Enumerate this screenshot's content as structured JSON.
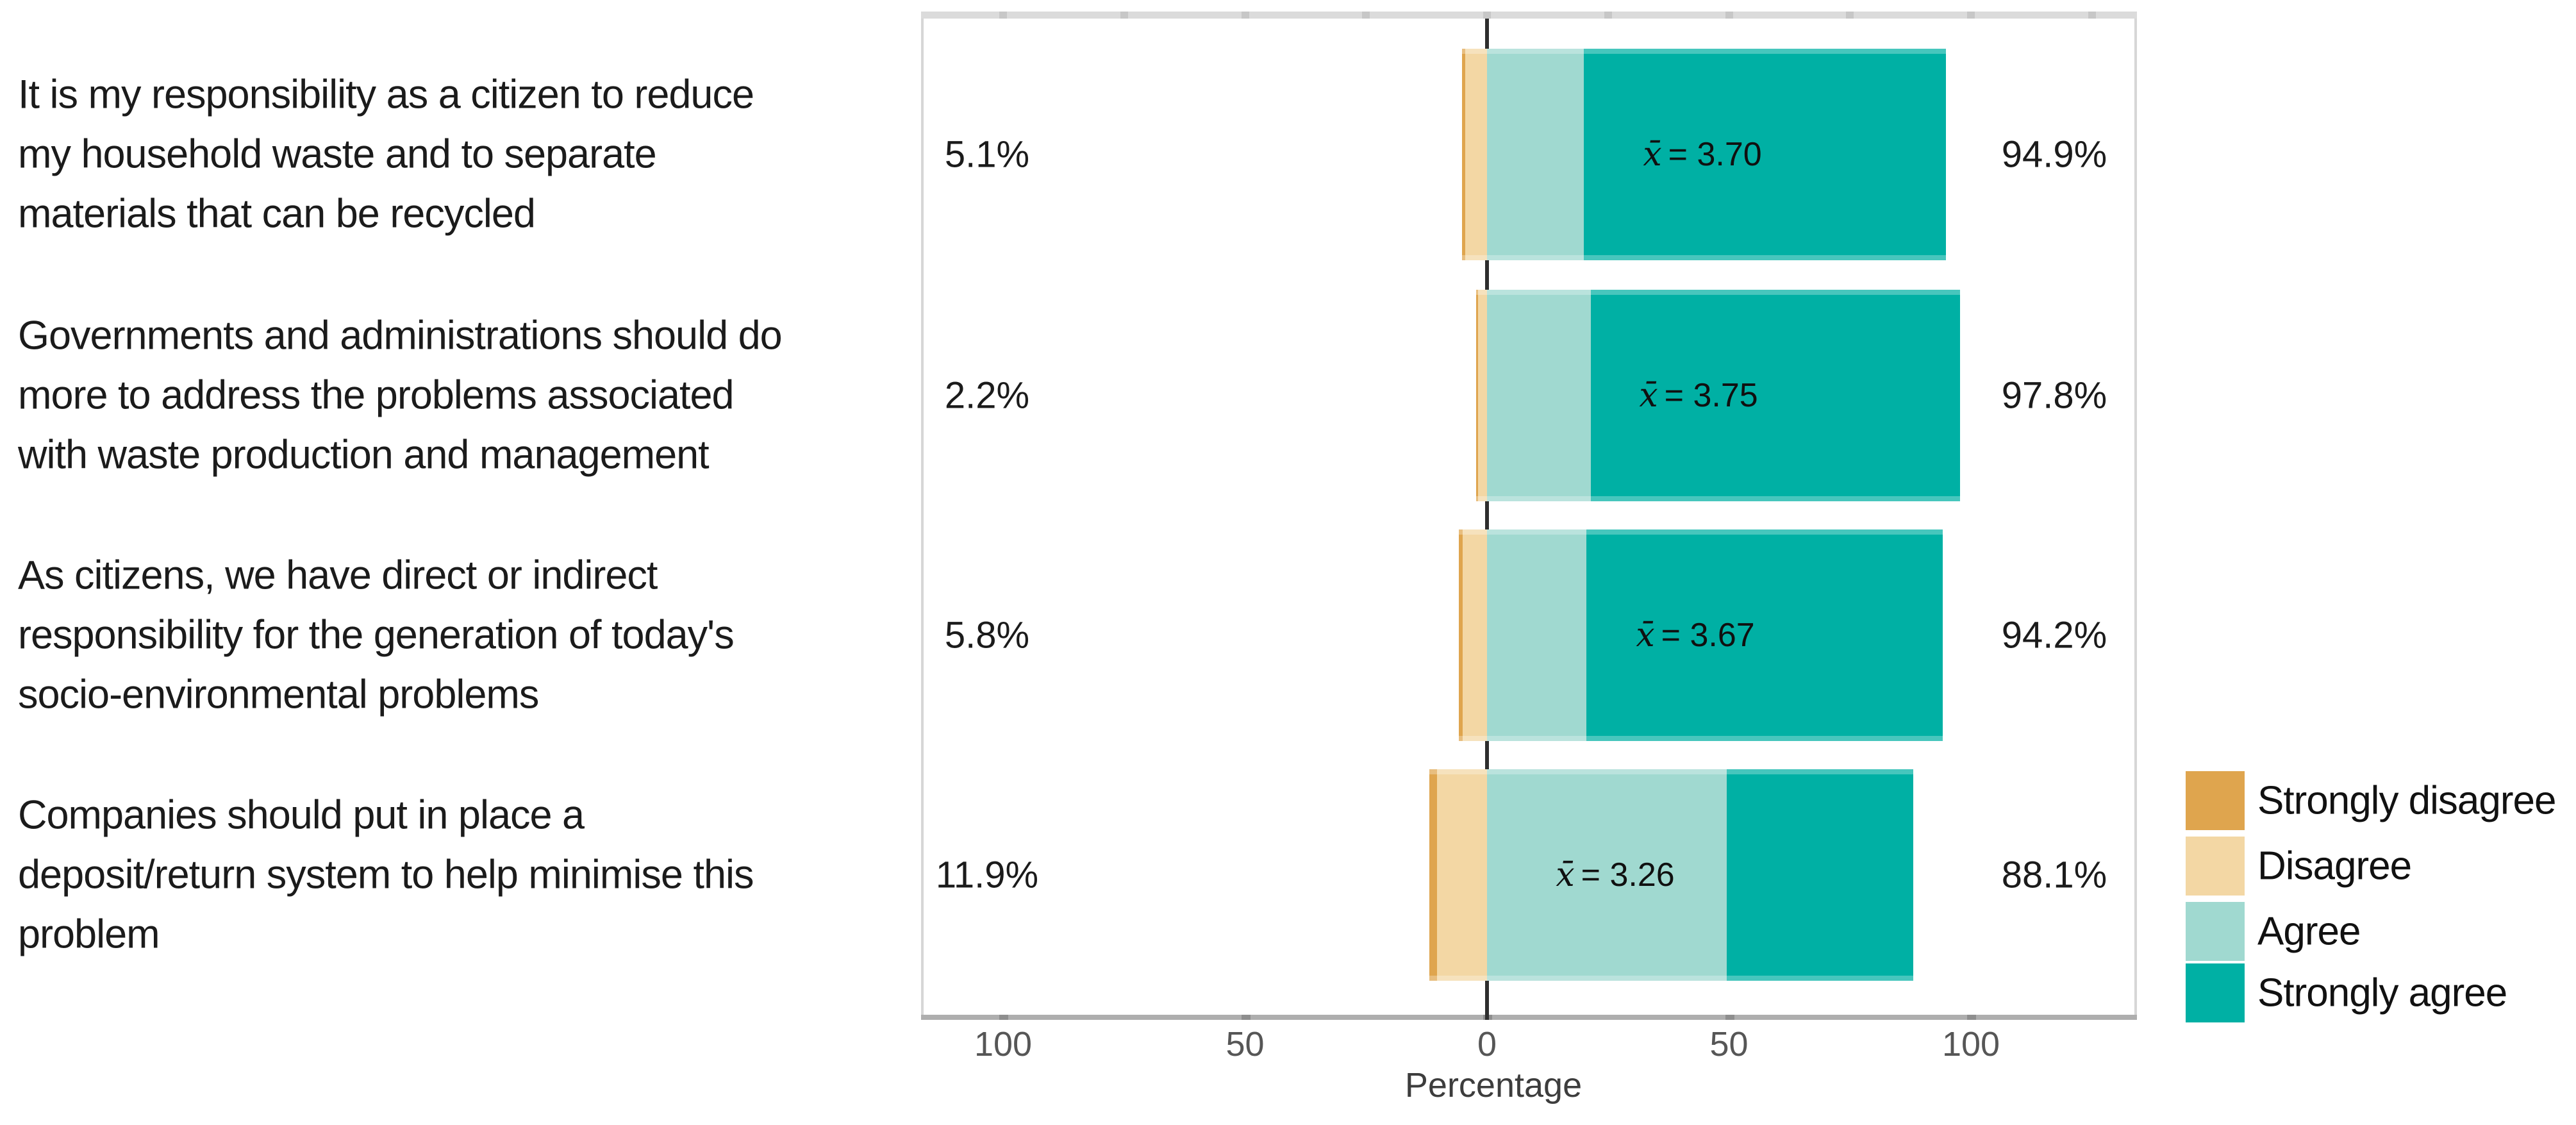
{
  "chart_data": {
    "type": "bar",
    "subtype": "diverging_stacked_likert",
    "x_axis": {
      "title": "Percentage",
      "tick_labels": [
        "100",
        "50",
        "0",
        "50",
        "100"
      ],
      "tick_values": [
        -100,
        -50,
        0,
        50,
        100
      ],
      "range": [
        -117,
        134
      ],
      "grid": "off"
    },
    "mean_symbol": "x̄",
    "legend": [
      {
        "key": "strongly_disagree",
        "label": "Strongly disagree",
        "color": "#DFA54E"
      },
      {
        "key": "disagree",
        "label": "Disagree",
        "color": "#F3D7A4"
      },
      {
        "key": "agree",
        "label": "Agree",
        "color": "#A0D9D0"
      },
      {
        "key": "strongly_agree",
        "label": "Strongly agree",
        "color": "#00B0A4"
      }
    ],
    "legend_position": "bottom-right",
    "rows": [
      {
        "statement_lines": [
          "It is my responsibility as a citizen to reduce",
          "my household waste and to separate",
          "materials that can be recycled"
        ],
        "left_label": "5.1%",
        "right_label": "94.9%",
        "mean_text": "= 3.70",
        "mean_value": 3.7,
        "disagree_total_pct": 5.1,
        "agree_total_pct": 94.9,
        "segments": {
          "strongly_disagree": 0.6,
          "disagree": 4.5,
          "agree": 20.0,
          "strongly_agree": 74.9
        }
      },
      {
        "statement_lines": [
          "Governments and administrations should do",
          "more to address the problems associated",
          "with waste production and management"
        ],
        "left_label": "2.2%",
        "right_label": "97.8%",
        "mean_text": "= 3.75",
        "mean_value": 3.75,
        "disagree_total_pct": 2.2,
        "agree_total_pct": 97.8,
        "segments": {
          "strongly_disagree": 0.4,
          "disagree": 1.8,
          "agree": 21.5,
          "strongly_agree": 76.3
        }
      },
      {
        "statement_lines": [
          "As citizens, we have direct or indirect",
          "responsibility for the generation of today's",
          "socio-environmental problems"
        ],
        "left_label": "5.8%",
        "right_label": "94.2%",
        "mean_text": "= 3.67",
        "mean_value": 3.67,
        "disagree_total_pct": 5.8,
        "agree_total_pct": 94.2,
        "segments": {
          "strongly_disagree": 0.8,
          "disagree": 5.0,
          "agree": 20.5,
          "strongly_agree": 73.7
        }
      },
      {
        "statement_lines": [
          "Companies should put in place a",
          "deposit/return system to help minimise this",
          "problem"
        ],
        "left_label": "11.9%",
        "right_label": "88.1%",
        "mean_text": "= 3.26",
        "mean_value": 3.26,
        "disagree_total_pct": 11.9,
        "agree_total_pct": 88.1,
        "segments": {
          "strongly_disagree": 1.6,
          "disagree": 10.3,
          "agree": 49.5,
          "strongly_agree": 38.6
        }
      }
    ]
  }
}
